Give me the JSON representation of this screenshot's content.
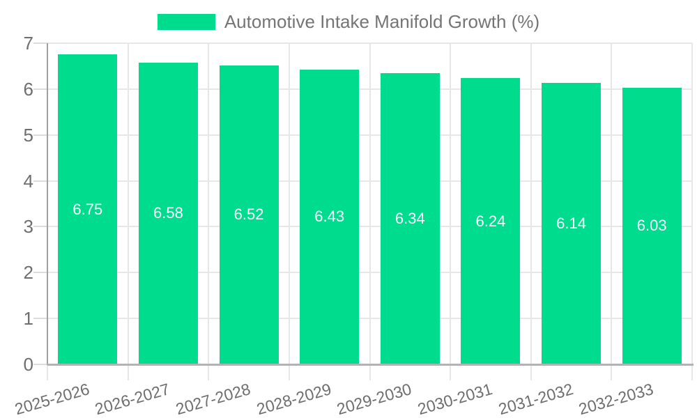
{
  "chart_data": {
    "type": "bar",
    "title": "Automotive Intake Manifold Growth (%)",
    "categories": [
      "2025-2026",
      "2026-2027",
      "2027-2028",
      "2028-2029",
      "2029-2030",
      "2030-2031",
      "2031-2032",
      "2032-2033"
    ],
    "values": [
      6.75,
      6.58,
      6.52,
      6.43,
      6.34,
      6.24,
      6.14,
      6.03
    ],
    "value_labels": [
      "6.75",
      "6.58",
      "6.52",
      "6.43",
      "6.34",
      "6.24",
      "6.14",
      "6.03"
    ],
    "xlabel": "",
    "ylabel": "",
    "ylim": [
      0,
      7
    ],
    "yticks": [
      0,
      1,
      2,
      3,
      4,
      5,
      6,
      7
    ],
    "grid": true,
    "legend_position": "top",
    "colors": {
      "bar": "#00DC8E",
      "value_label": "#FFFFFF",
      "axis_label": "#6E6E6E",
      "legend_text": "#757575",
      "gridline": "#E7E7E7",
      "tick": "#DCDCDC",
      "axis_line_left": "#A0A0A0",
      "axis_line_bottom": "#B3B3B3",
      "background": "#FFFFFF"
    }
  }
}
